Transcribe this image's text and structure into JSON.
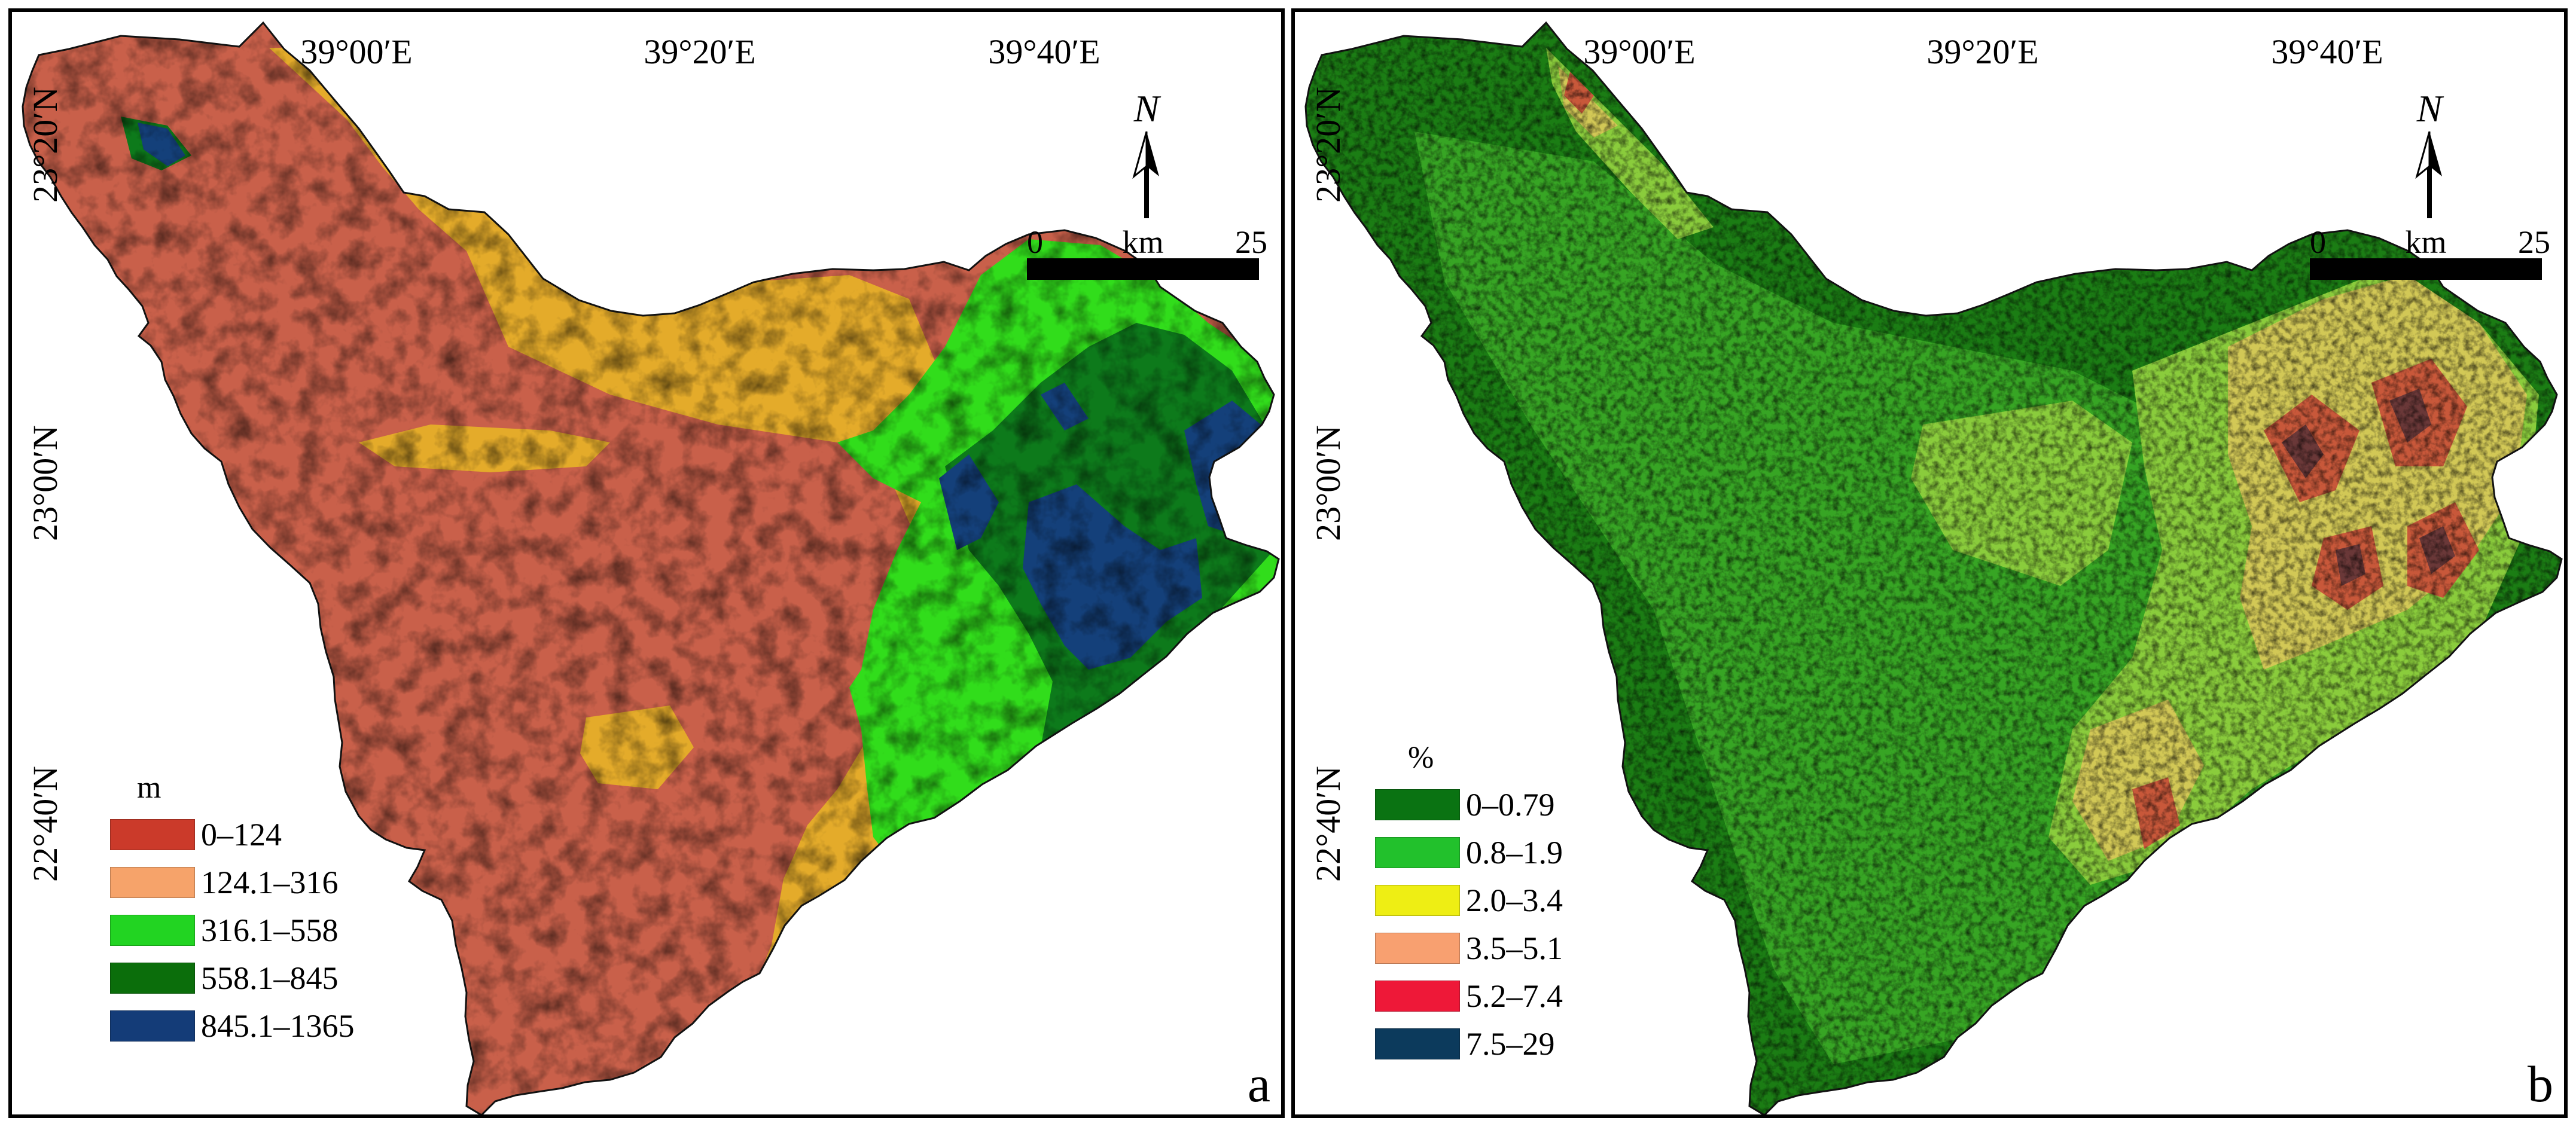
{
  "axis_labels": {
    "top": [
      "39°00′E",
      "39°20′E",
      "39°40′E"
    ],
    "left": [
      "23°20′N",
      "23°00′N",
      "22°40′N"
    ]
  },
  "north_arrow": {
    "letter": "N"
  },
  "scale_bar": {
    "start": "0",
    "unit": "km",
    "end": "25"
  },
  "panels": [
    {
      "label": "a",
      "legend": {
        "unit": "m",
        "items": [
          {
            "label": "0–124",
            "color": "#cb3a2a"
          },
          {
            "label": "124.1–316",
            "color": "#f6a36a"
          },
          {
            "label": "316.1–558",
            "color": "#22d422"
          },
          {
            "label": "558.1–845",
            "color": "#0b6e0b"
          },
          {
            "label": "845.1–1365",
            "color": "#143c78"
          }
        ]
      },
      "map_colors": [
        "#c9604a",
        "#e4ab2a",
        "#31dd1b",
        "#0d7a1b",
        "#14407a"
      ]
    },
    {
      "label": "b",
      "legend": {
        "unit": "%",
        "items": [
          {
            "label": "0–0.79",
            "color": "#0a7312"
          },
          {
            "label": "0.8–1.9",
            "color": "#22c12c"
          },
          {
            "label": "2.0–3.4",
            "color": "#eeee14"
          },
          {
            "label": "3.5–5.1",
            "color": "#f8a070"
          },
          {
            "label": "5.2–7.4",
            "color": "#ee1838"
          },
          {
            "label": "7.5–29",
            "color": "#0c3a5c"
          }
        ]
      },
      "map_colors": [
        "#1b7d14",
        "#37a524",
        "#8acc3c",
        "#d2c856",
        "#c8583a",
        "#6a3838"
      ]
    }
  ]
}
